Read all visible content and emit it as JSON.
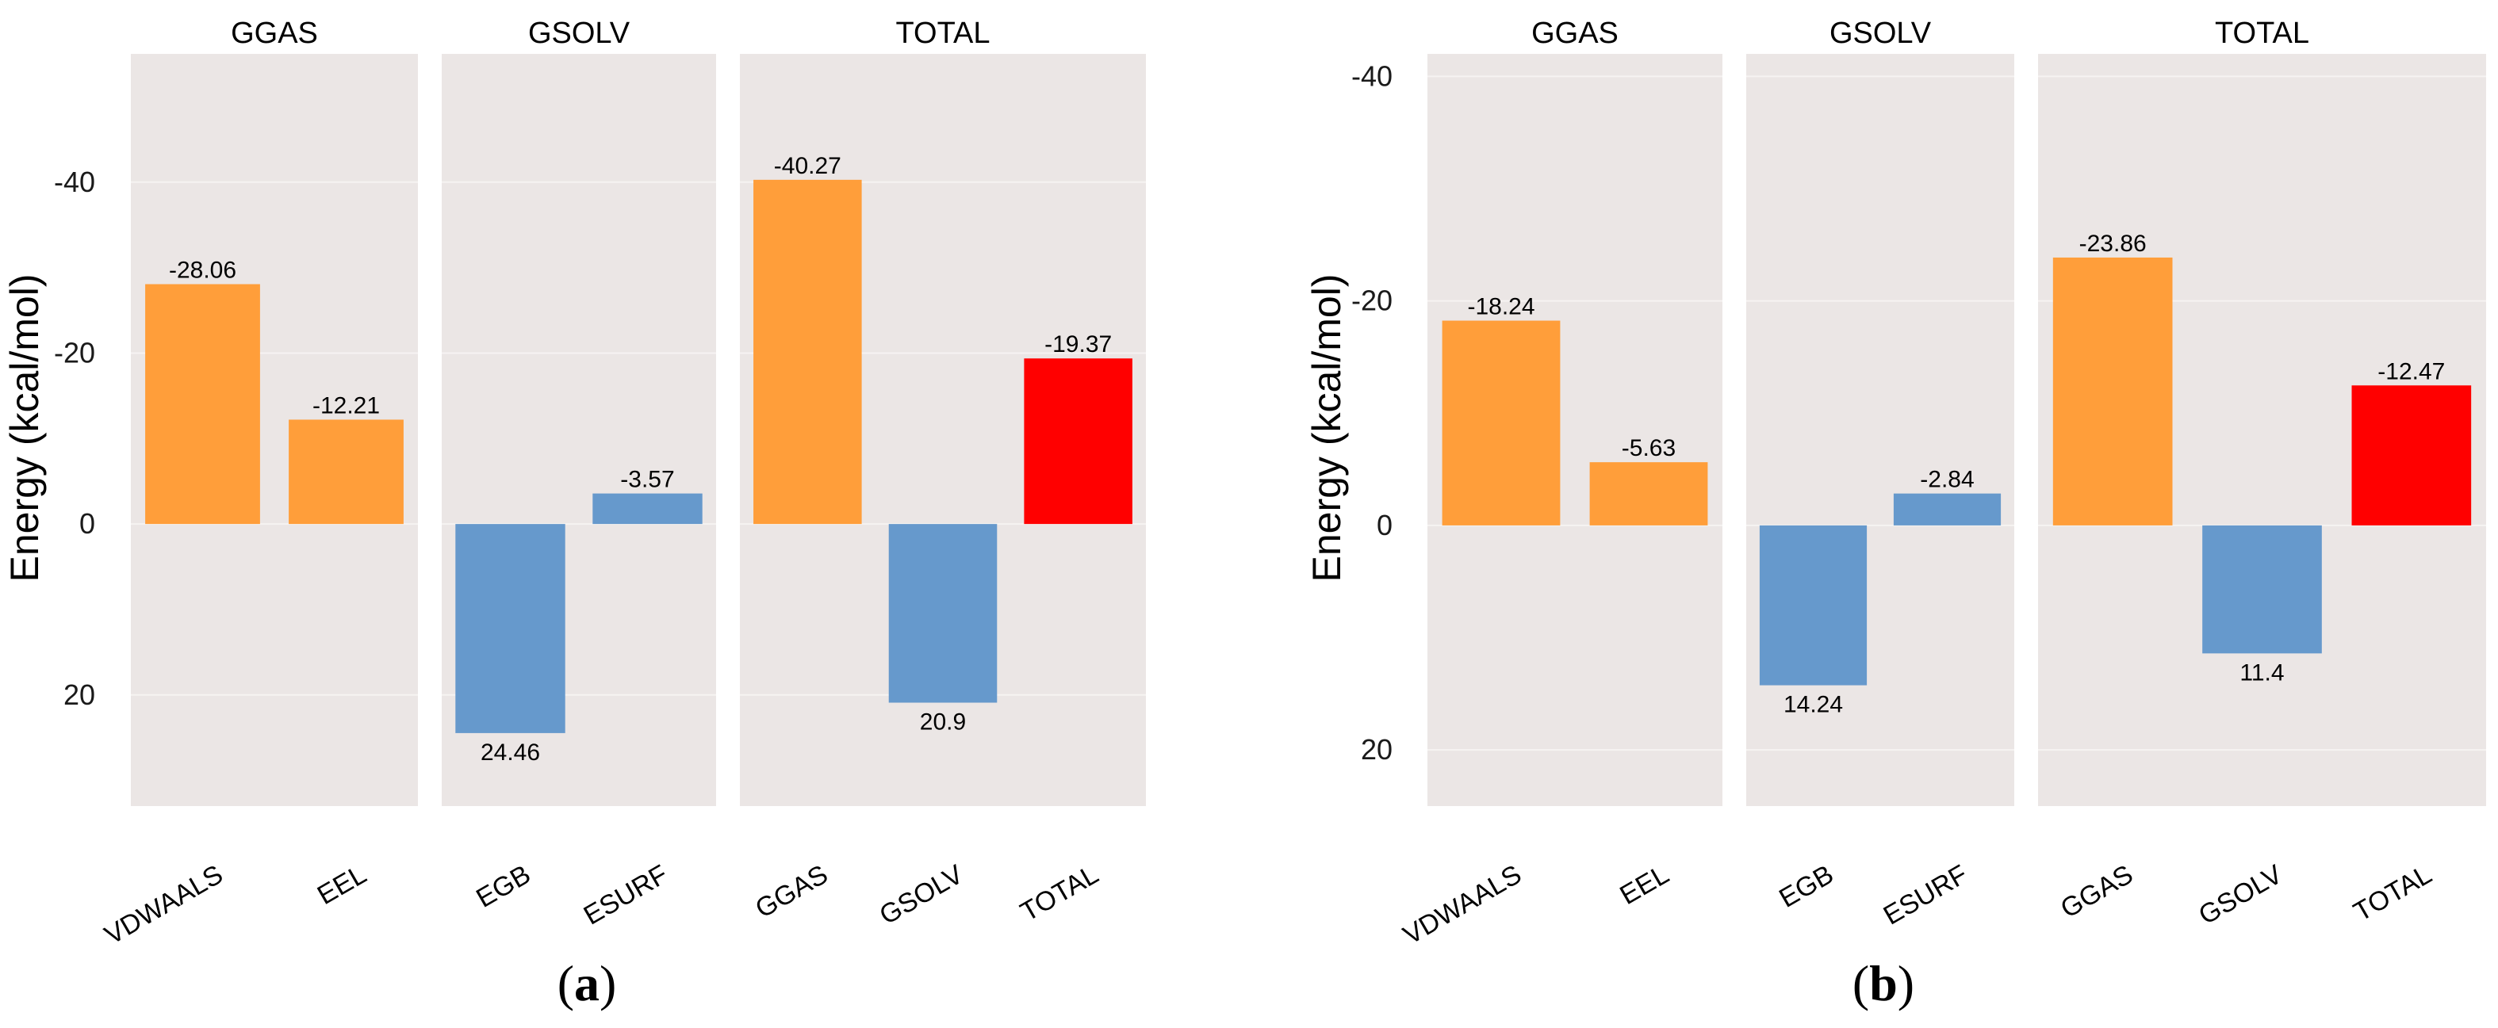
{
  "chart_data": [
    {
      "type": "bar",
      "caption_letter": "a",
      "ylabel": "Energy (kcal/mol)",
      "y_axis_inverted": true,
      "ylim": [
        -55,
        33
      ],
      "yticks": [
        -40,
        -20,
        0,
        20
      ],
      "facets": [
        {
          "title": "GGAS",
          "categories": [
            "VDWAALS",
            "EEL"
          ],
          "values": [
            -28.06,
            -12.21
          ],
          "labels": [
            "-28.06",
            "-12.21"
          ],
          "colors": [
            "#ff9e3a",
            "#ff9e3a"
          ]
        },
        {
          "title": "GSOLV",
          "categories": [
            "EGB",
            "ESURF"
          ],
          "values": [
            24.46,
            -3.57
          ],
          "labels": [
            "24.46",
            "-3.57"
          ],
          "colors": [
            "#6699cc",
            "#6699cc"
          ]
        },
        {
          "title": "TOTAL",
          "categories": [
            "GGAS",
            "GSOLV",
            "TOTAL"
          ],
          "values": [
            -40.27,
            20.9,
            -19.37
          ],
          "labels": [
            "-40.27",
            "20.9",
            "-19.37"
          ],
          "colors": [
            "#ff9e3a",
            "#6699cc",
            "#ff0000"
          ]
        }
      ]
    },
    {
      "type": "bar",
      "caption_letter": "b",
      "ylabel": "Energy (kcal/mol)",
      "y_axis_inverted": true,
      "ylim": [
        -42,
        25
      ],
      "yticks": [
        -40,
        -20,
        0,
        20
      ],
      "facets": [
        {
          "title": "GGAS",
          "categories": [
            "VDWAALS",
            "EEL"
          ],
          "values": [
            -18.24,
            -5.63
          ],
          "labels": [
            "-18.24",
            "-5.63"
          ],
          "colors": [
            "#ff9e3a",
            "#ff9e3a"
          ]
        },
        {
          "title": "GSOLV",
          "categories": [
            "EGB",
            "ESURF"
          ],
          "values": [
            14.24,
            -2.84
          ],
          "labels": [
            "14.24",
            "-2.84"
          ],
          "colors": [
            "#6699cc",
            "#6699cc"
          ]
        },
        {
          "title": "TOTAL",
          "categories": [
            "GGAS",
            "GSOLV",
            "TOTAL"
          ],
          "values": [
            -23.86,
            11.4,
            -12.47
          ],
          "labels": [
            "-23.86",
            "11.4",
            "-12.47"
          ],
          "colors": [
            "#ff9e3a",
            "#6699cc",
            "#ff0000"
          ]
        }
      ]
    }
  ]
}
